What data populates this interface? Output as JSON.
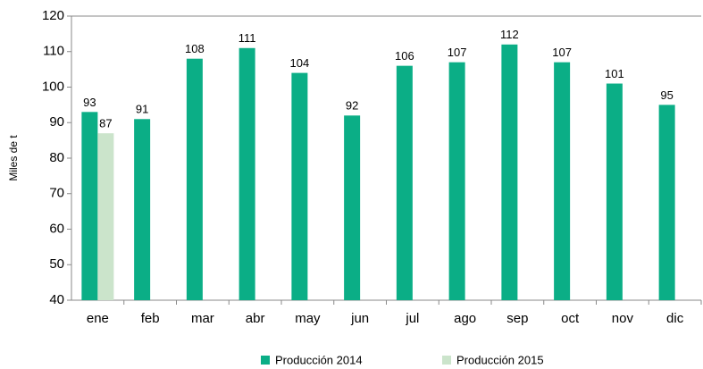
{
  "chart_data": {
    "type": "bar",
    "y_label": "Miles de t",
    "categories": [
      "ene",
      "feb",
      "mar",
      "abr",
      "may",
      "jun",
      "jul",
      "ago",
      "sep",
      "oct",
      "nov",
      "dic"
    ],
    "series": [
      {
        "name": "Producción 2014",
        "color": "#0bae86",
        "values": [
          93,
          91,
          108,
          111,
          104,
          92,
          106,
          107,
          112,
          107,
          101,
          95
        ]
      },
      {
        "name": "Producción 2015",
        "color": "#cbe4cb",
        "values": [
          87,
          null,
          null,
          null,
          null,
          null,
          null,
          null,
          null,
          null,
          null,
          null
        ]
      }
    ],
    "ylim": [
      40,
      120
    ],
    "yticks": [
      40,
      50,
      60,
      70,
      80,
      90,
      100,
      110,
      120
    ],
    "grid": false,
    "legend": "bottom"
  }
}
